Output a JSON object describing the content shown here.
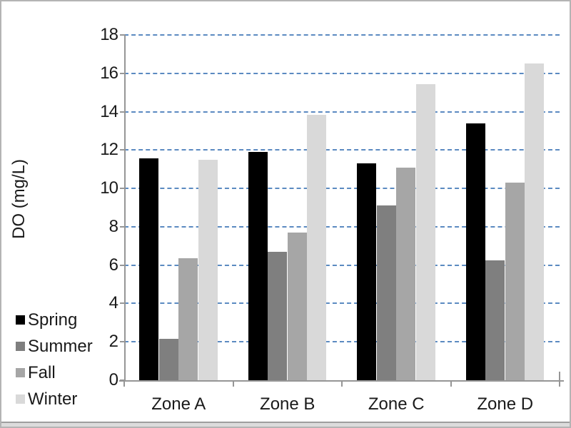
{
  "frame": {
    "background": "#ffffff",
    "border_color": "#b4b4b4"
  },
  "chart_data": {
    "type": "bar",
    "title": "",
    "categories": [
      "Zone A",
      "Zone B",
      "Zone C",
      "Zone D"
    ],
    "series": [
      {
        "name": "Spring",
        "color": "#000000",
        "values": [
          11.55,
          11.9,
          11.3,
          13.4
        ]
      },
      {
        "name": "Summer",
        "color": "#7f7f7f",
        "values": [
          2.15,
          6.7,
          9.1,
          6.25
        ]
      },
      {
        "name": "Fall",
        "color": "#a6a6a6",
        "values": [
          6.35,
          7.7,
          11.1,
          10.3
        ]
      },
      {
        "name": "Winter",
        "color": "#d9d9d9",
        "values": [
          11.5,
          13.85,
          15.45,
          16.5
        ]
      }
    ],
    "xlabel": "",
    "ylabel": "DO (mg/L)",
    "ylim": [
      0,
      18
    ],
    "ytick_step": 2,
    "grid": "horizontal-dashed",
    "gridline_color": "#4a7ebb",
    "axis_color": "#969696",
    "legend_position": "bottom-left"
  }
}
